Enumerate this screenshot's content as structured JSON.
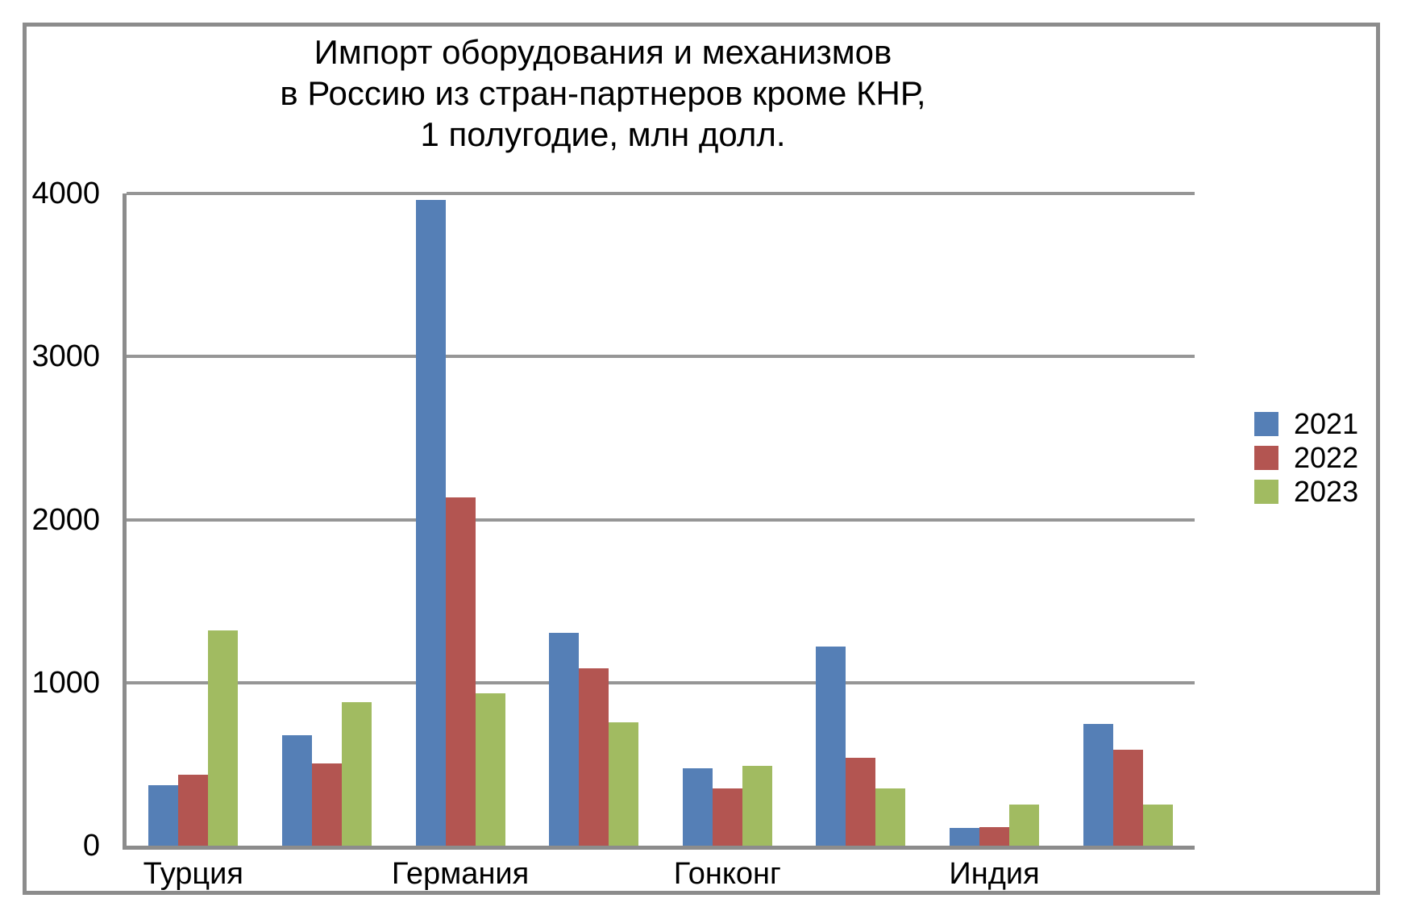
{
  "title": {
    "lines": [
      "Импорт оборудования и механизмов",
      "в Россию из стран-партнеров кроме КНР,",
      "1 полугодие, млн долл."
    ]
  },
  "y_axis": {
    "ticks": [
      "0",
      "1000",
      "2000",
      "3000",
      "4000"
    ],
    "max": 4000
  },
  "colors": {
    "grid": "#969696",
    "axis": "#8c8c8c",
    "series_2021": "#557fb6",
    "series_2022": "#b35551",
    "series_2023": "#a1bb61"
  },
  "chart_data": {
    "type": "bar",
    "title": "Импорт оборудования и механизмов в Россию из стран-партнеров кроме КНР, 1 полугодие, млн долл.",
    "categories": [
      "Турция",
      "",
      "Германия",
      "",
      "Гонконг",
      "",
      "Индия",
      ""
    ],
    "series": [
      {
        "name": "2021",
        "color": "#557fb6",
        "values": [
          370,
          675,
          3960,
          1305,
          475,
          1220,
          110,
          745
        ]
      },
      {
        "name": "2022",
        "color": "#b35551",
        "values": [
          435,
          505,
          2135,
          1090,
          350,
          540,
          115,
          590
        ]
      },
      {
        "name": "2023",
        "color": "#a1bb61",
        "values": [
          1320,
          880,
          935,
          755,
          490,
          350,
          250,
          250
        ]
      }
    ],
    "xlabel": "",
    "ylabel": "",
    "ylim": [
      0,
      4000
    ],
    "grid": "horizontal",
    "gridline_step": 1000,
    "legend_position": "right"
  }
}
